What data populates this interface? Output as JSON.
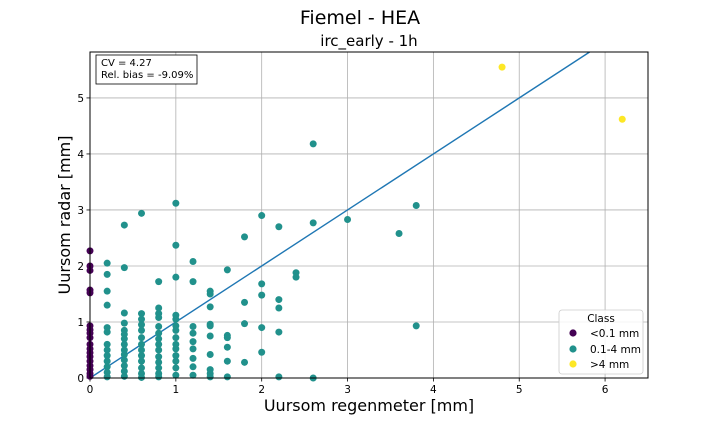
{
  "chart_data": {
    "type": "scatter",
    "suptitle": "Fiemel - HEA",
    "title": "irc_early - 1h",
    "xlabel": "Uursom regenmeter [mm]",
    "ylabel": "Uursom radar [mm]",
    "xlim": [
      0,
      6.5
    ],
    "ylim": [
      0,
      5.82
    ],
    "xticks": [
      "0",
      "1",
      "2",
      "3",
      "4",
      "5",
      "6"
    ],
    "yticks": [
      "0",
      "1",
      "2",
      "3",
      "4",
      "5"
    ],
    "grid": true,
    "stats": [
      "CV = 4.27",
      "Rel. bias = -9.09%"
    ],
    "legend": {
      "title": "Class",
      "position": "lower right",
      "entries": [
        {
          "label": "<0.1 mm",
          "color": "#440154"
        },
        {
          "label": "0.1-4 mm",
          "color": "#21918c"
        },
        {
          "label": ">4 mm",
          "color": "#fde725"
        }
      ]
    },
    "line": {
      "type": "one-to-one",
      "color": "#1f77b4",
      "points": [
        [
          0,
          0
        ],
        [
          5.82,
          5.82
        ]
      ]
    },
    "series": [
      {
        "class": "<0.1 mm",
        "color": "#440154",
        "points": [
          [
            0,
            2.27
          ],
          [
            0,
            2.0
          ],
          [
            0,
            1.92
          ],
          [
            0,
            1.57
          ],
          [
            0,
            1.52
          ],
          [
            0,
            0.93
          ],
          [
            0,
            0.86
          ],
          [
            0,
            0.8
          ],
          [
            0,
            0.72
          ],
          [
            0,
            0.6
          ],
          [
            0,
            0.52
          ],
          [
            0,
            0.45
          ],
          [
            0,
            0.38
          ],
          [
            0,
            0.3
          ],
          [
            0,
            0.22
          ],
          [
            0,
            0.15
          ],
          [
            0,
            0.08
          ],
          [
            0,
            0.03
          ]
        ]
      },
      {
        "class": "0.1-4 mm",
        "color": "#21918c",
        "points": [
          [
            0.2,
            2.05
          ],
          [
            0.2,
            1.85
          ],
          [
            0.2,
            1.55
          ],
          [
            0.2,
            1.3
          ],
          [
            0.2,
            0.9
          ],
          [
            0.2,
            0.82
          ],
          [
            0.2,
            0.6
          ],
          [
            0.2,
            0.5
          ],
          [
            0.2,
            0.4
          ],
          [
            0.2,
            0.3
          ],
          [
            0.2,
            0.2
          ],
          [
            0.2,
            0.1
          ],
          [
            0.2,
            0.02
          ],
          [
            0.4,
            2.73
          ],
          [
            0.4,
            1.97
          ],
          [
            0.4,
            1.16
          ],
          [
            0.4,
            0.98
          ],
          [
            0.4,
            0.85
          ],
          [
            0.4,
            0.78
          ],
          [
            0.4,
            0.7
          ],
          [
            0.4,
            0.6
          ],
          [
            0.4,
            0.5
          ],
          [
            0.4,
            0.42
          ],
          [
            0.4,
            0.32
          ],
          [
            0.4,
            0.22
          ],
          [
            0.4,
            0.12
          ],
          [
            0.4,
            0.03
          ],
          [
            0.6,
            2.94
          ],
          [
            0.6,
            1.15
          ],
          [
            0.6,
            1.05
          ],
          [
            0.6,
            0.95
          ],
          [
            0.6,
            0.85
          ],
          [
            0.6,
            0.72
          ],
          [
            0.6,
            0.6
          ],
          [
            0.6,
            0.5
          ],
          [
            0.6,
            0.4
          ],
          [
            0.6,
            0.3
          ],
          [
            0.6,
            0.18
          ],
          [
            0.6,
            0.08
          ],
          [
            0.6,
            0.01
          ],
          [
            0.8,
            1.72
          ],
          [
            0.8,
            1.25
          ],
          [
            0.8,
            1.15
          ],
          [
            0.8,
            1.08
          ],
          [
            0.8,
            0.92
          ],
          [
            0.8,
            0.8
          ],
          [
            0.8,
            0.7
          ],
          [
            0.8,
            0.6
          ],
          [
            0.8,
            0.5
          ],
          [
            0.8,
            0.38
          ],
          [
            0.8,
            0.28
          ],
          [
            0.8,
            0.18
          ],
          [
            0.8,
            0.08
          ],
          [
            0.8,
            0.02
          ],
          [
            1.0,
            3.12
          ],
          [
            1.0,
            2.37
          ],
          [
            1.0,
            1.8
          ],
          [
            1.0,
            1.12
          ],
          [
            1.0,
            1.05
          ],
          [
            1.0,
            0.93
          ],
          [
            1.0,
            0.85
          ],
          [
            1.0,
            0.72
          ],
          [
            1.0,
            0.6
          ],
          [
            1.0,
            0.52
          ],
          [
            1.0,
            0.4
          ],
          [
            1.0,
            0.3
          ],
          [
            1.0,
            0.18
          ],
          [
            1.0,
            0.05
          ],
          [
            1.2,
            2.08
          ],
          [
            1.2,
            1.72
          ],
          [
            1.2,
            0.92
          ],
          [
            1.2,
            0.8
          ],
          [
            1.2,
            0.65
          ],
          [
            1.2,
            0.52
          ],
          [
            1.2,
            0.35
          ],
          [
            1.2,
            0.2
          ],
          [
            1.2,
            0.05
          ],
          [
            1.4,
            1.55
          ],
          [
            1.4,
            1.5
          ],
          [
            1.4,
            1.27
          ],
          [
            1.4,
            0.96
          ],
          [
            1.4,
            0.93
          ],
          [
            1.4,
            0.75
          ],
          [
            1.4,
            0.42
          ],
          [
            1.4,
            0.15
          ],
          [
            1.4,
            0.08
          ],
          [
            1.4,
            0.02
          ],
          [
            1.6,
            1.93
          ],
          [
            1.6,
            0.76
          ],
          [
            1.6,
            0.72
          ],
          [
            1.6,
            0.55
          ],
          [
            1.6,
            0.3
          ],
          [
            1.6,
            0.02
          ],
          [
            1.8,
            2.52
          ],
          [
            1.8,
            1.35
          ],
          [
            1.8,
            0.97
          ],
          [
            1.8,
            0.28
          ],
          [
            2.0,
            2.9
          ],
          [
            2.0,
            1.68
          ],
          [
            2.0,
            1.48
          ],
          [
            2.0,
            0.9
          ],
          [
            2.0,
            0.46
          ],
          [
            2.2,
            2.7
          ],
          [
            2.2,
            1.4
          ],
          [
            2.2,
            1.25
          ],
          [
            2.2,
            0.82
          ],
          [
            2.2,
            0.02
          ],
          [
            2.4,
            1.88
          ],
          [
            2.4,
            1.8
          ],
          [
            2.6,
            4.18
          ],
          [
            2.6,
            2.77
          ],
          [
            2.6,
            0.0
          ],
          [
            3.0,
            2.83
          ],
          [
            3.6,
            2.58
          ],
          [
            3.8,
            3.08
          ],
          [
            3.8,
            0.93
          ]
        ]
      },
      {
        "class": ">4 mm",
        "color": "#fde725",
        "points": [
          [
            4.8,
            5.55
          ],
          [
            6.2,
            4.62
          ]
        ]
      }
    ]
  }
}
